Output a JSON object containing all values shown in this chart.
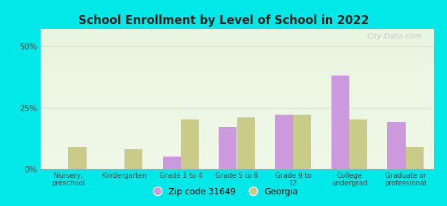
{
  "title": "School Enrollment by Level of School in 2022",
  "categories": [
    "Nursery,\npreschool",
    "Kindergarten",
    "Grade 1 to 4",
    "Grade 5 to 8",
    "Grade 9 to\n12",
    "College\nundergrad",
    "Graduate or\nprofessional"
  ],
  "zip_values": [
    0.0,
    0.0,
    5.0,
    17.0,
    22.0,
    38.0,
    19.0
  ],
  "georgia_values": [
    9.0,
    8.0,
    20.0,
    21.0,
    22.0,
    20.0,
    9.0
  ],
  "zip_color": "#cc99dd",
  "georgia_color": "#c8cc88",
  "background_outer": "#00e8e8",
  "title_color": "#222222",
  "axis_label_color": "#444444",
  "grid_color": "#dddddd",
  "yticks": [
    0,
    25,
    50
  ],
  "ylim": [
    0,
    57
  ],
  "legend_zip_label": "Zip code 31649",
  "legend_georgia_label": "Georgia",
  "watermark": "City-Data.com",
  "bar_width": 0.32
}
